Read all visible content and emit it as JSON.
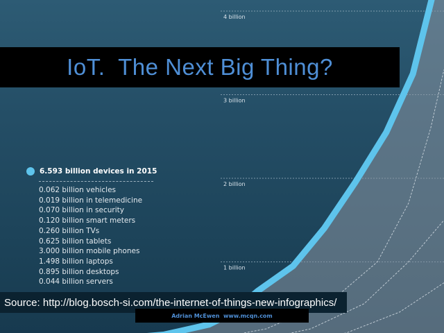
{
  "title": "IoT.  The Next Big Thing?",
  "source": "Source: http://blog.bosch-si.com/the-internet-of-things-new-infographics/",
  "credit": "Adrian McEwen  www.mcqn.com",
  "colors": {
    "background": "#244e66",
    "accent_line": "#5ec4ec",
    "title_text": "#4f8fd6",
    "area_fill": "#8a95a3"
  },
  "chart_data": {
    "type": "line",
    "title": "",
    "xlabel": "",
    "ylabel": "",
    "y_ticks": [
      {
        "value": 1,
        "label": "1 billion"
      },
      {
        "value": 2,
        "label": "2 billion"
      },
      {
        "value": 3,
        "label": "3 billion"
      },
      {
        "value": 4,
        "label": "4 billion"
      }
    ],
    "ylim": [
      0,
      4.2
    ],
    "grid": true,
    "legend": {
      "header": "6.593 billion devices in 2015",
      "items": [
        "0.062 billion vehicles",
        "0.019 billion in telemedicine",
        "0.070 billion in security",
        "0.120 billion smart meters",
        "0.260 billion TVs",
        "0.625 billion tablets",
        "3.000 billion mobile phones",
        "1.498 billion laptops",
        "0.895 billion desktops",
        "0.044 billion servers"
      ]
    },
    "series": [
      {
        "values": [
          [
            0.1,
            0.02
          ],
          [
            0.22,
            0.06
          ],
          [
            0.37,
            0.13
          ],
          [
            0.47,
            0.25
          ],
          [
            0.52,
            0.38
          ],
          [
            0.58,
            0.65
          ],
          [
            0.66,
            0.95
          ],
          [
            0.73,
            1.4
          ],
          [
            0.8,
            1.95
          ],
          [
            0.87,
            2.55
          ],
          [
            0.93,
            3.25
          ],
          [
            0.975,
            4.2
          ]
        ]
      },
      {
        "values": [
          [
            0.45,
            0.05
          ],
          [
            0.6,
            0.2
          ],
          [
            0.75,
            0.55
          ],
          [
            0.85,
            1.0
          ],
          [
            0.92,
            1.7
          ],
          [
            0.97,
            2.6
          ],
          [
            1.0,
            3.3
          ]
        ]
      },
      {
        "values": [
          [
            0.55,
            0.03
          ],
          [
            0.7,
            0.2
          ],
          [
            0.82,
            0.5
          ],
          [
            0.92,
            1.0
          ],
          [
            1.0,
            1.5
          ]
        ]
      },
      {
        "values": [
          [
            0.62,
            0.02
          ],
          [
            0.78,
            0.15
          ],
          [
            0.9,
            0.4
          ],
          [
            1.0,
            0.75
          ]
        ]
      }
    ]
  }
}
